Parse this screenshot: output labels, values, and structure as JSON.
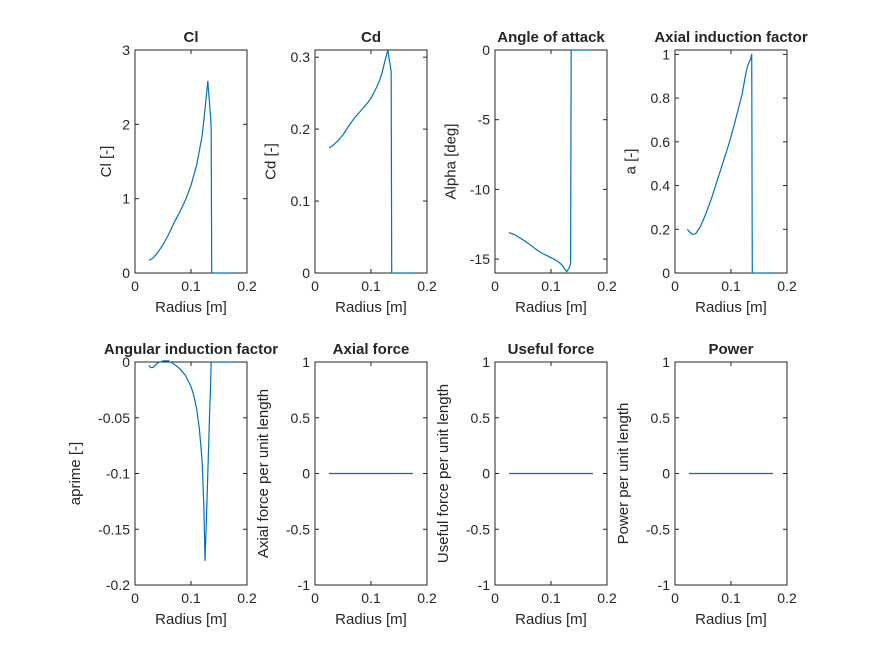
{
  "figure": {
    "background": "#ffffff",
    "series_color": "#0072bd",
    "axis_color": "#262626"
  },
  "chart_data": [
    {
      "type": "line",
      "title": "Cl",
      "xlabel": "Radius [m]",
      "ylabel": "Cl [-]",
      "xlim": [
        0,
        0.2
      ],
      "ylim": [
        0,
        3
      ],
      "xticks": [
        0,
        0.1,
        0.2
      ],
      "xtick_labels": [
        "0",
        "0.1",
        "0.2"
      ],
      "yticks": [
        0,
        1,
        2,
        3
      ],
      "ytick_labels": [
        "0",
        "1",
        "2",
        "3"
      ],
      "grid": false,
      "series": [
        {
          "x": [
            0.025,
            0.032,
            0.04,
            0.05,
            0.06,
            0.07,
            0.08,
            0.09,
            0.1,
            0.11,
            0.12,
            0.125,
            0.13,
            0.135,
            0.136,
            0.137,
            0.145,
            0.155,
            0.165,
            0.175
          ],
          "y": [
            0.17,
            0.2,
            0.27,
            0.38,
            0.52,
            0.68,
            0.82,
            0.98,
            1.18,
            1.45,
            1.85,
            2.2,
            2.58,
            2.1,
            1.95,
            0.0,
            0.0,
            0.0,
            0.0,
            0.0
          ]
        }
      ]
    },
    {
      "type": "line",
      "title": "Cd",
      "xlabel": "Radius [m]",
      "ylabel": "Cd [-]",
      "xlim": [
        0,
        0.2
      ],
      "ylim": [
        0,
        0.31
      ],
      "xticks": [
        0,
        0.1,
        0.2
      ],
      "xtick_labels": [
        "0",
        "0.1",
        "0.2"
      ],
      "yticks": [
        0,
        0.1,
        0.2,
        0.3
      ],
      "ytick_labels": [
        "0",
        "0.1",
        "0.2",
        "0.3"
      ],
      "grid": false,
      "series": [
        {
          "x": [
            0.025,
            0.03,
            0.04,
            0.05,
            0.06,
            0.07,
            0.08,
            0.09,
            0.1,
            0.11,
            0.115,
            0.12,
            0.125,
            0.13,
            0.135,
            0.136,
            0.137,
            0.145,
            0.155,
            0.165,
            0.175
          ],
          "y": [
            0.174,
            0.176,
            0.183,
            0.192,
            0.204,
            0.215,
            0.224,
            0.233,
            0.243,
            0.258,
            0.267,
            0.279,
            0.295,
            0.31,
            0.285,
            0.28,
            0.0,
            0.0,
            0.0,
            0.0,
            0.0
          ]
        }
      ]
    },
    {
      "type": "line",
      "title": "Angle of attack",
      "xlabel": "Radius [m]",
      "ylabel": "Alpha [deg]",
      "xlim": [
        0,
        0.2
      ],
      "ylim": [
        -16,
        0
      ],
      "xticks": [
        0,
        0.1,
        0.2
      ],
      "xtick_labels": [
        "0",
        "0.1",
        "0.2"
      ],
      "yticks": [
        -15,
        -10,
        -5,
        0
      ],
      "ytick_labels": [
        "-15",
        "-10",
        "-5",
        "0"
      ],
      "grid": false,
      "series": [
        {
          "x": [
            0.025,
            0.035,
            0.045,
            0.055,
            0.065,
            0.075,
            0.085,
            0.095,
            0.105,
            0.115,
            0.12,
            0.125,
            0.128,
            0.133,
            0.135,
            0.136,
            0.145,
            0.155,
            0.165,
            0.175
          ],
          "y": [
            -13.1,
            -13.25,
            -13.5,
            -13.75,
            -14.05,
            -14.35,
            -14.6,
            -14.8,
            -15.0,
            -15.25,
            -15.45,
            -15.75,
            -15.9,
            -15.6,
            -15.3,
            0.0,
            0.0,
            0.0,
            0.0,
            0.0
          ]
        }
      ]
    },
    {
      "type": "line",
      "title": "Axial induction factor",
      "xlabel": "Radius [m]",
      "ylabel": "a [-]",
      "xlim": [
        0,
        0.2
      ],
      "ylim": [
        0,
        1.02
      ],
      "xticks": [
        0,
        0.1,
        0.2
      ],
      "xtick_labels": [
        "0",
        "0.1",
        "0.2"
      ],
      "yticks": [
        0,
        0.2,
        0.4,
        0.6,
        0.8,
        1
      ],
      "ytick_labels": [
        "0",
        "0.2",
        "0.4",
        "0.6",
        "0.8",
        "1"
      ],
      "grid": false,
      "series": [
        {
          "x": [
            0.022,
            0.027,
            0.032,
            0.037,
            0.045,
            0.055,
            0.065,
            0.075,
            0.085,
            0.095,
            0.105,
            0.112,
            0.12,
            0.127,
            0.13,
            0.135,
            0.137,
            0.138,
            0.145,
            0.155,
            0.165,
            0.175
          ],
          "y": [
            0.2,
            0.185,
            0.176,
            0.18,
            0.21,
            0.27,
            0.34,
            0.42,
            0.5,
            0.58,
            0.67,
            0.74,
            0.82,
            0.92,
            0.95,
            0.98,
            1.0,
            0.0,
            0.0,
            0.0,
            0.0,
            0.0
          ]
        }
      ]
    },
    {
      "type": "line",
      "title": "Angular induction factor",
      "xlabel": "Radius [m]",
      "ylabel": "aprime [-]",
      "xlim": [
        0,
        0.2
      ],
      "ylim": [
        -0.2,
        0
      ],
      "xticks": [
        0,
        0.1,
        0.2
      ],
      "xtick_labels": [
        "0",
        "0.1",
        "0.2"
      ],
      "yticks": [
        -0.2,
        -0.15,
        -0.1,
        -0.05,
        0
      ],
      "ytick_labels": [
        "-0.2",
        "-0.15",
        "-0.1",
        "-0.05",
        "0"
      ],
      "grid": false,
      "series": [
        {
          "x": [
            0.025,
            0.028,
            0.032,
            0.036,
            0.04,
            0.05,
            0.06,
            0.07,
            0.08,
            0.09,
            0.1,
            0.105,
            0.11,
            0.115,
            0.12,
            0.123,
            0.125,
            0.127,
            0.13,
            0.133,
            0.135,
            0.136,
            0.145,
            0.155,
            0.165,
            0.175
          ],
          "y": [
            -0.003,
            -0.005,
            -0.005,
            -0.003,
            -0.001,
            0.001,
            0.001,
            -0.002,
            -0.006,
            -0.012,
            -0.022,
            -0.03,
            -0.042,
            -0.06,
            -0.09,
            -0.13,
            -0.178,
            -0.15,
            -0.1,
            -0.05,
            -0.02,
            0.0,
            0.0,
            0.0,
            0.0,
            0.0
          ]
        }
      ]
    },
    {
      "type": "line",
      "title": "Axial force",
      "xlabel": "Radius [m]",
      "ylabel": "Axial force per unit length",
      "xlim": [
        0,
        0.2
      ],
      "ylim": [
        -1,
        1
      ],
      "xticks": [
        0,
        0.1,
        0.2
      ],
      "xtick_labels": [
        "0",
        "0.1",
        "0.2"
      ],
      "yticks": [
        -1,
        -0.5,
        0,
        0.5,
        1
      ],
      "ytick_labels": [
        "-1",
        "-0.5",
        "0",
        "0.5",
        "1"
      ],
      "grid": false,
      "series": [
        {
          "x": [
            0.025,
            0.175
          ],
          "y": [
            0,
            0
          ]
        }
      ]
    },
    {
      "type": "line",
      "title": "Useful force",
      "xlabel": "Radius [m]",
      "ylabel": "Useful force per unit length",
      "xlim": [
        0,
        0.2
      ],
      "ylim": [
        -1,
        1
      ],
      "xticks": [
        0,
        0.1,
        0.2
      ],
      "xtick_labels": [
        "0",
        "0.1",
        "0.2"
      ],
      "yticks": [
        -1,
        -0.5,
        0,
        0.5,
        1
      ],
      "ytick_labels": [
        "-1",
        "-0.5",
        "0",
        "0.5",
        "1"
      ],
      "grid": false,
      "series": [
        {
          "x": [
            0.025,
            0.175
          ],
          "y": [
            0,
            0
          ]
        }
      ]
    },
    {
      "type": "line",
      "title": "Power",
      "xlabel": "Radius [m]",
      "ylabel": "Power per unit length",
      "xlim": [
        0,
        0.2
      ],
      "ylim": [
        -1,
        1
      ],
      "xticks": [
        0,
        0.1,
        0.2
      ],
      "xtick_labels": [
        "0",
        "0.1",
        "0.2"
      ],
      "yticks": [
        -1,
        -0.5,
        0,
        0.5,
        1
      ],
      "ytick_labels": [
        "-1",
        "-0.5",
        "0",
        "0.5",
        "1"
      ],
      "grid": false,
      "series": [
        {
          "x": [
            0.025,
            0.175
          ],
          "y": [
            0,
            0
          ]
        }
      ]
    }
  ]
}
